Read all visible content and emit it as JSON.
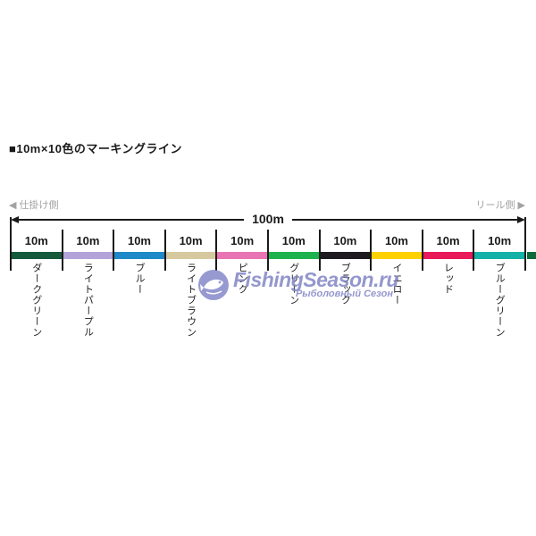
{
  "title": "■10m×10色のマーキングライン",
  "diagram": {
    "left_arrow": "◀",
    "left_side_label": "仕掛け側",
    "right_side_label": "リール側",
    "right_arrow": "▶",
    "total_length_label": "100m",
    "segment_length_label": "10m",
    "line_color": "#1a1a1a",
    "segments": [
      {
        "label": "ダークグリーン",
        "color": "#155a3a"
      },
      {
        "label": "ライトパープル",
        "color": "#b4a3d8"
      },
      {
        "label": "ブルー",
        "color": "#1f88c6"
      },
      {
        "label": "ライトブラウン",
        "color": "#d6c9a0"
      },
      {
        "label": "ピンク",
        "color": "#e874b4"
      },
      {
        "label": "グリーン",
        "color": "#1db24e"
      },
      {
        "label": "ブラック",
        "color": "#1d1b1f"
      },
      {
        "label": "イエロー",
        "color": "#fdd000"
      },
      {
        "label": "レッド",
        "color": "#e81a5a"
      },
      {
        "label": "ブルーグリーン",
        "color": "#13b1a7"
      }
    ],
    "continuation_color": "#0c6a3c"
  },
  "watermark": {
    "line1": "FishingSeason.ru",
    "line2": "Рыболовный Сезон",
    "color": "#7d81c3"
  }
}
